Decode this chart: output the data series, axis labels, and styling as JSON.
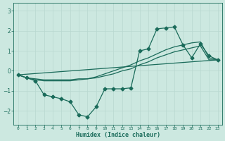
{
  "xlabel": "Humidex (Indice chaleur)",
  "xlim": [
    -0.5,
    23.5
  ],
  "ylim": [
    -2.7,
    3.4
  ],
  "background_color": "#cce8e0",
  "grid_color": "#b8d8d0",
  "line_color": "#1a6b5a",
  "yticks": [
    -2,
    -1,
    0,
    1,
    2,
    3
  ],
  "xticks": [
    0,
    1,
    2,
    3,
    4,
    5,
    6,
    7,
    8,
    9,
    10,
    11,
    12,
    13,
    14,
    15,
    16,
    17,
    18,
    19,
    20,
    21,
    22,
    23
  ],
  "line1_x": [
    0,
    1,
    2,
    3,
    4,
    5,
    6,
    7,
    8,
    9,
    10,
    11,
    12,
    13,
    14,
    15,
    16,
    17,
    18,
    19,
    20,
    21,
    22,
    23
  ],
  "line1_y": [
    -0.2,
    -0.35,
    -0.5,
    -1.2,
    -1.3,
    -1.4,
    -1.55,
    -2.2,
    -2.3,
    -1.8,
    -0.9,
    -0.9,
    -0.9,
    -0.85,
    1.0,
    1.1,
    2.1,
    2.15,
    2.2,
    1.3,
    0.65,
    1.35,
    0.75,
    0.55
  ],
  "line2_x": [
    0,
    1,
    2,
    3,
    4,
    5,
    6,
    7,
    8,
    9,
    10,
    11,
    12,
    13,
    14,
    15,
    16,
    17,
    18,
    19,
    20,
    21,
    22,
    23
  ],
  "line2_y": [
    -0.2,
    -0.35,
    -0.4,
    -0.45,
    -0.45,
    -0.45,
    -0.45,
    -0.4,
    -0.4,
    -0.35,
    -0.25,
    -0.15,
    0.0,
    0.1,
    0.3,
    0.45,
    0.65,
    0.8,
    0.95,
    1.05,
    1.15,
    1.25,
    0.55,
    0.55
  ],
  "line3_x": [
    0,
    23
  ],
  "line3_y": [
    -0.2,
    0.55
  ],
  "line4_x": [
    0,
    1,
    2,
    3,
    4,
    5,
    6,
    7,
    8,
    9,
    10,
    11,
    12,
    13,
    14,
    15,
    16,
    17,
    18,
    19,
    20,
    21,
    22,
    23
  ],
  "line4_y": [
    -0.2,
    -0.35,
    -0.45,
    -0.5,
    -0.5,
    -0.5,
    -0.5,
    -0.45,
    -0.4,
    -0.3,
    -0.15,
    0.0,
    0.15,
    0.3,
    0.5,
    0.65,
    0.85,
    1.05,
    1.2,
    1.3,
    1.4,
    1.45,
    0.65,
    0.55
  ]
}
